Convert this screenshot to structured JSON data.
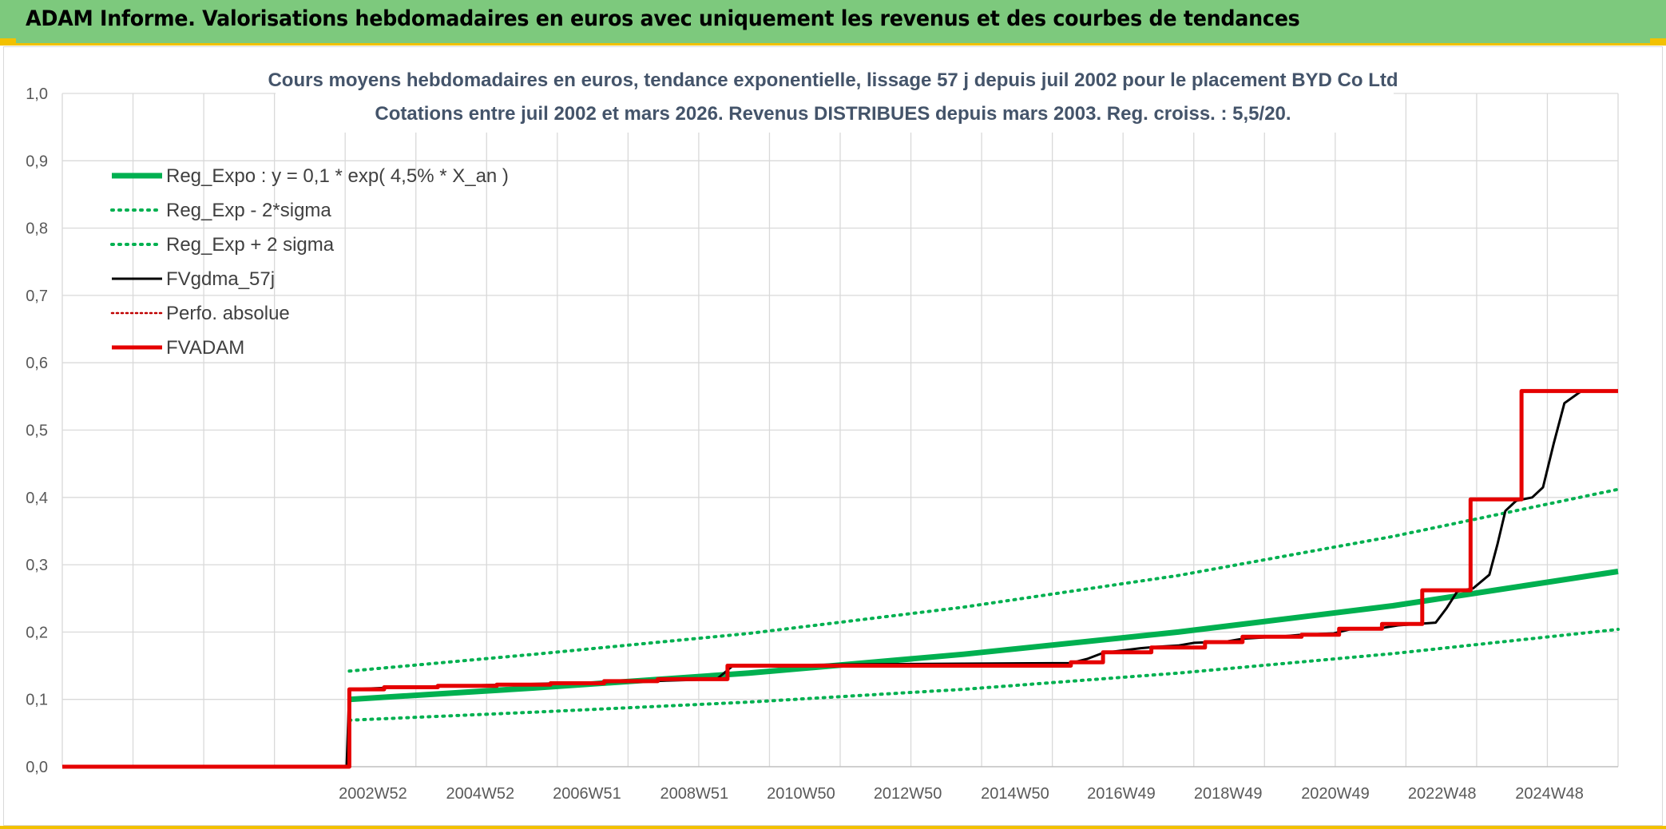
{
  "banner": {
    "title": "ADAM Informe. Valorisations hebdomadaires en euros avec uniquement les revenus et des courbes de tendances"
  },
  "colors": {
    "banner_bg": "#7dc97d",
    "accent_yellow": "#f2c100",
    "reg_green": "#00b050",
    "fv_black": "#000000",
    "adam_red": "#e50000"
  },
  "chart_data": {
    "type": "line",
    "title": "Cours moyens hebdomadaires en euros, tendance exponentielle, lissage 57 j depuis juil 2002 pour le placement BYD Co Ltd",
    "subtitle": "Cotations entre juil 2002 et mars 2026. Revenus DISTRIBUES depuis mars 2003. Reg. croiss. : 5,5/20.",
    "xlabel": "",
    "ylabel": "",
    "xlim": [
      1997.2,
      2026.2
    ],
    "ylim": [
      0,
      1.0
    ],
    "yticks": [
      "0,0",
      "0,1",
      "0,2",
      "0,3",
      "0,4",
      "0,5",
      "0,6",
      "0,7",
      "0,8",
      "0,9",
      "1,0"
    ],
    "xtick_values": [
      2002.99,
      2004.99,
      2006.98,
      2008.98,
      2010.97,
      2012.96,
      2014.96,
      2016.94,
      2018.93,
      2020.93,
      2022.92,
      2024.92
    ],
    "xticks": [
      "2002W52",
      "2004W52",
      "2006W51",
      "2008W51",
      "2010W50",
      "2012W50",
      "2014W50",
      "2016W49",
      "2018W49",
      "2020W49",
      "2022W48",
      "2024W48"
    ],
    "grid": true,
    "legend_position": "top-left",
    "series": [
      {
        "name": "Reg_Expo : y = 0,1 * exp( 4,5% *  X_an )",
        "style": "solid-thick",
        "color": "#00b050",
        "x": [
          2002.55,
          2006,
          2010,
          2014,
          2018,
          2022,
          2026.2
        ],
        "y": [
          0.1,
          0.117,
          0.139,
          0.167,
          0.2,
          0.239,
          0.29
        ]
      },
      {
        "name": "Reg_Exp - 2*sigma",
        "style": "dotted",
        "color": "#00b050",
        "x": [
          2002.55,
          2006,
          2010,
          2014,
          2018,
          2022,
          2026.2
        ],
        "y": [
          0.069,
          0.081,
          0.096,
          0.115,
          0.139,
          0.168,
          0.204
        ]
      },
      {
        "name": "Reg_Exp + 2 sigma",
        "style": "dotted",
        "color": "#00b050",
        "x": [
          2002.55,
          2006,
          2010,
          2014,
          2018,
          2022,
          2026.2
        ],
        "y": [
          0.142,
          0.167,
          0.198,
          0.237,
          0.284,
          0.342,
          0.412
        ]
      },
      {
        "name": "FVgdma_57j",
        "style": "solid",
        "color": "#000000",
        "x": [
          1997.2,
          2002.5,
          2002.55,
          2003.5,
          2004.5,
          2005.5,
          2006.5,
          2007.5,
          2008.5,
          2009.4,
          2009.7,
          2012.0,
          2014.0,
          2016.0,
          2016.3,
          2016.6,
          2016.9,
          2017.3,
          2017.6,
          2018.0,
          2018.3,
          2018.9,
          2019.2,
          2020.0,
          2020.3,
          2020.9,
          2021.2,
          2021.8,
          2022.1,
          2022.8,
          2023.0,
          2023.2,
          2023.5,
          2023.8,
          2023.95,
          2024.1,
          2024.3,
          2024.6,
          2024.8,
          2025.0,
          2025.2,
          2025.5,
          2026.2
        ],
        "y": [
          0,
          0,
          0.115,
          0.118,
          0.12,
          0.122,
          0.124,
          0.126,
          0.128,
          0.13,
          0.15,
          0.152,
          0.153,
          0.154,
          0.16,
          0.169,
          0.172,
          0.176,
          0.178,
          0.18,
          0.184,
          0.186,
          0.19,
          0.194,
          0.196,
          0.198,
          0.204,
          0.206,
          0.21,
          0.214,
          0.235,
          0.26,
          0.265,
          0.285,
          0.33,
          0.38,
          0.395,
          0.4,
          0.415,
          0.48,
          0.54,
          0.557,
          0.558
        ]
      },
      {
        "name": "Perfo. absolue",
        "style": "dotted-thin",
        "color": "#c00000",
        "x": [],
        "y": []
      },
      {
        "name": "FVADAM",
        "style": "step",
        "color": "#e50000",
        "x": [
          1997.2,
          2002.55,
          2002.55,
          2003.2,
          2003.2,
          2004.2,
          2004.2,
          2005.3,
          2005.3,
          2006.3,
          2006.3,
          2007.3,
          2007.3,
          2008.3,
          2008.3,
          2009.3,
          2009.3,
          2009.6,
          2009.6,
          2016.0,
          2016.0,
          2016.6,
          2016.6,
          2017.5,
          2017.5,
          2018.5,
          2018.5,
          2019.2,
          2019.2,
          2020.3,
          2020.3,
          2021.0,
          2021.0,
          2021.8,
          2021.8,
          2022.55,
          2022.55,
          2023.45,
          2023.45,
          2024.4,
          2024.4,
          2025.3,
          2025.3,
          2026.2
        ],
        "y": [
          0,
          0,
          0.115,
          0.115,
          0.118,
          0.118,
          0.12,
          0.12,
          0.122,
          0.122,
          0.124,
          0.124,
          0.127,
          0.127,
          0.13,
          0.13,
          0.13,
          0.13,
          0.15,
          0.15,
          0.155,
          0.155,
          0.17,
          0.17,
          0.177,
          0.177,
          0.185,
          0.185,
          0.193,
          0.193,
          0.196,
          0.196,
          0.205,
          0.205,
          0.212,
          0.212,
          0.262,
          0.262,
          0.397,
          0.397,
          0.558,
          0.558,
          0.558,
          0.558
        ]
      }
    ]
  }
}
